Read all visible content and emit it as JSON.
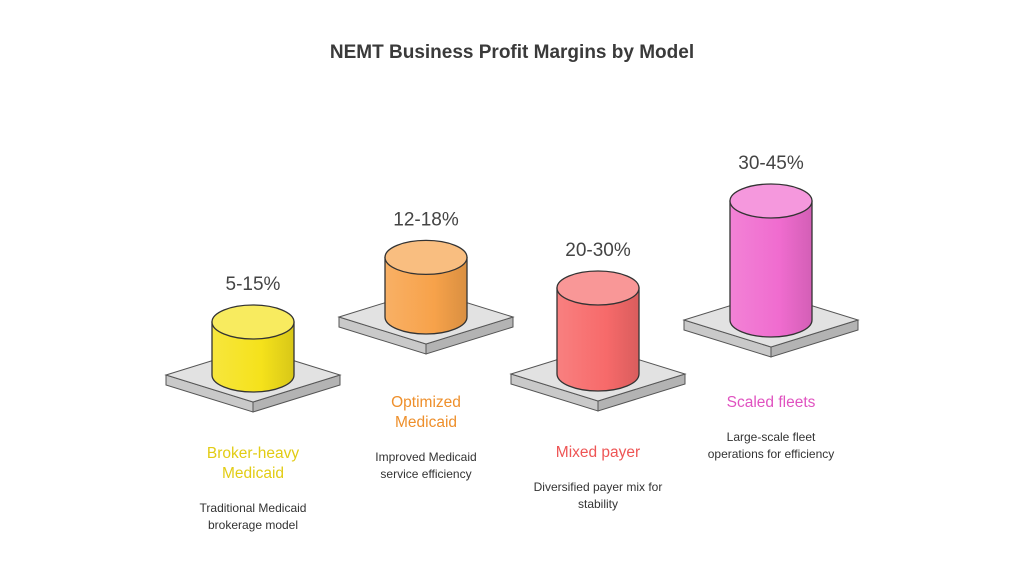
{
  "chart_data": {
    "type": "bar",
    "title": "NEMT Business Profit Margins by Model",
    "categories": [
      "Broker-heavy\nMedicaid",
      "Optimized\nMedicaid",
      "Mixed payer",
      "Scaled fleets"
    ],
    "series": [
      {
        "value_labels": [
          "5-15%",
          "12-18%",
          "20-30%",
          "30-45%"
        ],
        "ranges": [
          [
            5,
            15
          ],
          [
            12,
            18
          ],
          [
            20,
            30
          ],
          [
            30,
            45
          ]
        ]
      }
    ],
    "descriptions": [
      "Traditional Medicaid\nbrokerage model",
      "Improved Medicaid\nservice efficiency",
      "Diversified payer mix for\nstability",
      "Large-scale fleet\noperations for efficiency"
    ],
    "colors": [
      "#f5e21b",
      "#f7a24a",
      "#f76a6a",
      "#f06ccf"
    ],
    "label_colors": [
      "#e2cc14",
      "#ee8f2b",
      "#ee5555",
      "#e052c0"
    ]
  }
}
